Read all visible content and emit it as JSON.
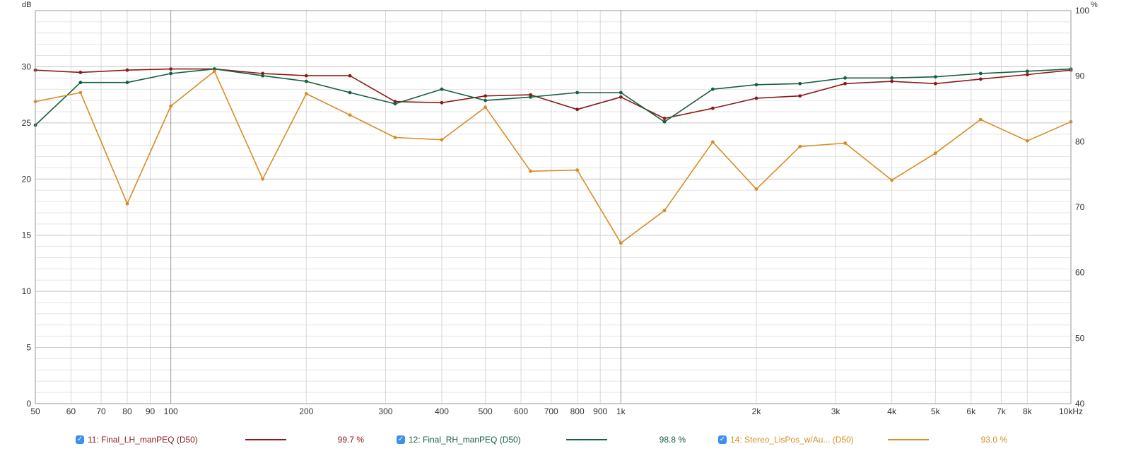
{
  "chart_data": {
    "type": "line",
    "y_left_unit": "dB",
    "y_right_unit": "%",
    "x_unit_suffix": "Hz",
    "x_scale": "log",
    "xlim": [
      50,
      10000
    ],
    "ylim_left": [
      0,
      35
    ],
    "ylim_right": [
      40,
      100
    ],
    "grid": true,
    "x_ticks": [
      {
        "v": 50,
        "label": "50"
      },
      {
        "v": 60,
        "label": "60"
      },
      {
        "v": 70,
        "label": "70"
      },
      {
        "v": 80,
        "label": "80"
      },
      {
        "v": 90,
        "label": "90"
      },
      {
        "v": 100,
        "label": "100"
      },
      {
        "v": 200,
        "label": "200"
      },
      {
        "v": 300,
        "label": "300"
      },
      {
        "v": 400,
        "label": "400"
      },
      {
        "v": 500,
        "label": "500"
      },
      {
        "v": 600,
        "label": "600"
      },
      {
        "v": 700,
        "label": "700"
      },
      {
        "v": 800,
        "label": "800"
      },
      {
        "v": 900,
        "label": "900"
      },
      {
        "v": 1000,
        "label": "1k"
      },
      {
        "v": 2000,
        "label": "2k"
      },
      {
        "v": 3000,
        "label": "3k"
      },
      {
        "v": 4000,
        "label": "4k"
      },
      {
        "v": 5000,
        "label": "5k"
      },
      {
        "v": 6000,
        "label": "6k"
      },
      {
        "v": 7000,
        "label": "7k"
      },
      {
        "v": 8000,
        "label": "8k"
      },
      {
        "v": 10000,
        "label": "10kHz"
      }
    ],
    "y_left_ticks": [
      0,
      5,
      10,
      15,
      20,
      25,
      30
    ],
    "y_right_ticks": [
      40,
      50,
      60,
      70,
      80,
      90,
      100
    ],
    "x": [
      50,
      63,
      80,
      100,
      125,
      160,
      200,
      250,
      315,
      400,
      500,
      630,
      800,
      1000,
      1250,
      1600,
      2000,
      2500,
      3150,
      4000,
      5000,
      6300,
      8000,
      10000
    ],
    "series": [
      {
        "name": "11: Final_LH_manPEQ (D50)",
        "color": "#8b1a1a",
        "value_label": "99.7 %",
        "checked": true,
        "values": [
          29.7,
          29.5,
          29.7,
          29.8,
          29.8,
          29.4,
          29.2,
          29.2,
          26.9,
          26.8,
          27.4,
          27.5,
          26.2,
          27.3,
          25.4,
          26.3,
          27.2,
          27.4,
          28.5,
          28.7,
          28.5,
          28.9,
          29.3,
          29.7
        ]
      },
      {
        "name": "12: Final_RH_manPEQ (D50)",
        "color": "#156040",
        "value_label": "98.8 %",
        "checked": true,
        "values": [
          24.8,
          28.6,
          28.6,
          29.4,
          29.8,
          29.2,
          28.7,
          27.7,
          26.7,
          28.0,
          27.0,
          27.3,
          27.7,
          27.7,
          25.1,
          28.0,
          28.4,
          28.5,
          29.0,
          29.0,
          29.1,
          29.4,
          29.6,
          29.8
        ]
      },
      {
        "name": "14: Stereo_LisPos_w/Au... (D50)",
        "color": "#d98c24",
        "value_label": "93.0 %",
        "checked": true,
        "values": [
          26.9,
          27.7,
          17.8,
          26.5,
          29.6,
          20.0,
          27.6,
          25.7,
          23.7,
          23.5,
          26.4,
          20.7,
          20.8,
          14.3,
          17.2,
          23.3,
          19.1,
          22.9,
          23.2,
          19.9,
          22.3,
          25.3,
          23.4,
          25.1
        ]
      }
    ]
  },
  "check_glyph": "✓"
}
